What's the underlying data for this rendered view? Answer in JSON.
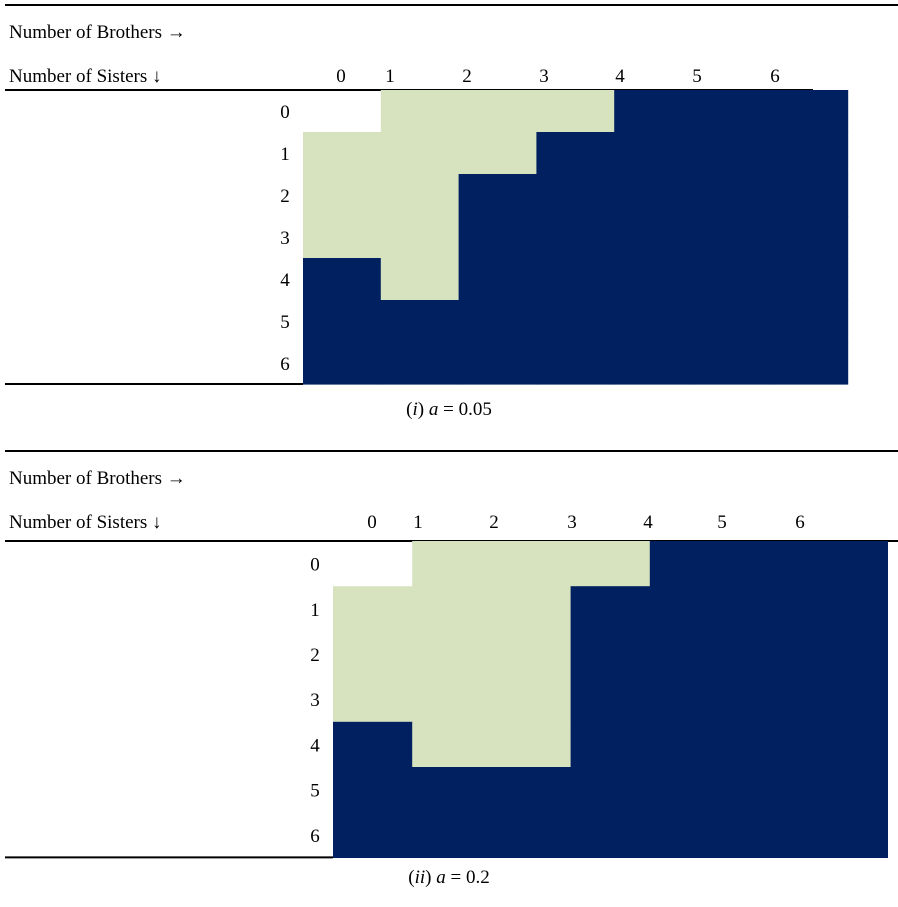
{
  "colors": {
    "white": "#ffffff",
    "light": "#d7e3bf",
    "dark": "#002060",
    "rule": "#000000"
  },
  "chart_data": [
    {
      "type": "heatmap",
      "row_header": "Number of Brothers →",
      "col_header": "Number of Sisters ↓",
      "x_label": "Number of Brothers",
      "y_label": "Number of Sisters",
      "x": [
        0,
        1,
        2,
        3,
        4,
        5,
        6
      ],
      "y": [
        0,
        1,
        2,
        3,
        4,
        5,
        6
      ],
      "caption_prefix": "(",
      "caption_roman": "i",
      "caption_mid": ") ",
      "caption_var": "a",
      "caption_value": " = 0.05",
      "cells": [
        [
          0,
          1,
          1,
          1,
          2,
          2,
          2
        ],
        [
          1,
          1,
          1,
          2,
          2,
          2,
          2
        ],
        [
          1,
          1,
          2,
          2,
          2,
          2,
          2
        ],
        [
          1,
          1,
          2,
          2,
          2,
          2,
          2
        ],
        [
          2,
          1,
          2,
          2,
          2,
          2,
          2
        ],
        [
          2,
          2,
          2,
          2,
          2,
          2,
          2
        ],
        [
          2,
          2,
          2,
          2,
          2,
          2,
          2
        ]
      ]
    },
    {
      "type": "heatmap",
      "row_header": "Number of Brothers →",
      "col_header": "Number of Sisters ↓",
      "x_label": "Number of Brothers",
      "y_label": "Number of Sisters",
      "x": [
        0,
        1,
        2,
        3,
        4,
        5,
        6
      ],
      "y": [
        0,
        1,
        2,
        3,
        4,
        5,
        6
      ],
      "caption_prefix": "(",
      "caption_roman": "ii",
      "caption_mid": ") ",
      "caption_var": "a",
      "caption_value": " = 0.2",
      "cells": [
        [
          0,
          1,
          1,
          1,
          2,
          2,
          2
        ],
        [
          1,
          1,
          1,
          2,
          2,
          2,
          2
        ],
        [
          1,
          1,
          1,
          2,
          2,
          2,
          2
        ],
        [
          1,
          1,
          1,
          2,
          2,
          2,
          2
        ],
        [
          2,
          1,
          1,
          2,
          2,
          2,
          2
        ],
        [
          2,
          2,
          2,
          2,
          2,
          2,
          2
        ],
        [
          2,
          2,
          2,
          2,
          2,
          2,
          2
        ]
      ]
    }
  ]
}
